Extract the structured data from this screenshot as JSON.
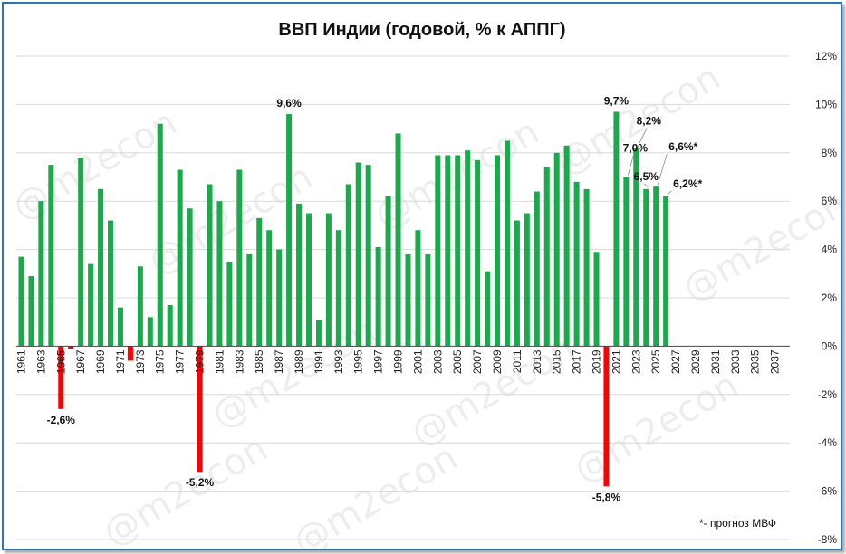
{
  "chart_data": {
    "type": "bar",
    "title": "ВВП Индии (годовой, % к АППГ)",
    "watermark": "@m2econ",
    "footnote": "*- прогноз МВФ",
    "ylim": [
      -8,
      12
    ],
    "yticks": [
      "12%",
      "10%",
      "8%",
      "6%",
      "4%",
      "2%",
      "0%",
      "-2%",
      "-4%",
      "-6%",
      "-8%"
    ],
    "x_start": 1961,
    "x_end": 2038,
    "x_tick_labels": [
      "1961",
      "1963",
      "1965",
      "1967",
      "1969",
      "1971",
      "1973",
      "1975",
      "1977",
      "1979",
      "1981",
      "1983",
      "1985",
      "1987",
      "1989",
      "1991",
      "1993",
      "1995",
      "1997",
      "1999",
      "2001",
      "2003",
      "2005",
      "2007",
      "2009",
      "2011",
      "2013",
      "2015",
      "2017",
      "2019",
      "2021",
      "2023",
      "2025",
      "2027",
      "2029",
      "2031",
      "2033",
      "2035",
      "2037"
    ],
    "colors": {
      "positive": "#1aaa4b",
      "negative": "#ff0000",
      "axis": "#444444",
      "grid": "#d9d9d9",
      "border": "#2e75b6"
    },
    "grid": true,
    "values": [
      {
        "year": 1961,
        "value": 3.7
      },
      {
        "year": 1962,
        "value": 2.9
      },
      {
        "year": 1963,
        "value": 6.0
      },
      {
        "year": 1964,
        "value": 7.5
      },
      {
        "year": 1965,
        "value": -2.6
      },
      {
        "year": 1966,
        "value": -0.1
      },
      {
        "year": 1967,
        "value": 7.8
      },
      {
        "year": 1968,
        "value": 3.4
      },
      {
        "year": 1969,
        "value": 6.5
      },
      {
        "year": 1970,
        "value": 5.2
      },
      {
        "year": 1971,
        "value": 1.6
      },
      {
        "year": 1972,
        "value": -0.6
      },
      {
        "year": 1973,
        "value": 3.3
      },
      {
        "year": 1974,
        "value": 1.2
      },
      {
        "year": 1975,
        "value": 9.2
      },
      {
        "year": 1976,
        "value": 1.7
      },
      {
        "year": 1977,
        "value": 7.3
      },
      {
        "year": 1978,
        "value": 5.7
      },
      {
        "year": 1979,
        "value": -5.2
      },
      {
        "year": 1980,
        "value": 6.7
      },
      {
        "year": 1981,
        "value": 6.0
      },
      {
        "year": 1982,
        "value": 3.5
      },
      {
        "year": 1983,
        "value": 7.3
      },
      {
        "year": 1984,
        "value": 3.8
      },
      {
        "year": 1985,
        "value": 5.3
      },
      {
        "year": 1986,
        "value": 4.8
      },
      {
        "year": 1987,
        "value": 4.0
      },
      {
        "year": 1988,
        "value": 9.6
      },
      {
        "year": 1989,
        "value": 5.9
      },
      {
        "year": 1990,
        "value": 5.5
      },
      {
        "year": 1991,
        "value": 1.1
      },
      {
        "year": 1992,
        "value": 5.5
      },
      {
        "year": 1993,
        "value": 4.8
      },
      {
        "year": 1994,
        "value": 6.7
      },
      {
        "year": 1995,
        "value": 7.6
      },
      {
        "year": 1996,
        "value": 7.5
      },
      {
        "year": 1997,
        "value": 4.1
      },
      {
        "year": 1998,
        "value": 6.2
      },
      {
        "year": 1999,
        "value": 8.8
      },
      {
        "year": 2000,
        "value": 3.8
      },
      {
        "year": 2001,
        "value": 4.8
      },
      {
        "year": 2002,
        "value": 3.8
      },
      {
        "year": 2003,
        "value": 7.9
      },
      {
        "year": 2004,
        "value": 7.9
      },
      {
        "year": 2005,
        "value": 7.9
      },
      {
        "year": 2006,
        "value": 8.1
      },
      {
        "year": 2007,
        "value": 7.7
      },
      {
        "year": 2008,
        "value": 3.1
      },
      {
        "year": 2009,
        "value": 7.9
      },
      {
        "year": 2010,
        "value": 8.5
      },
      {
        "year": 2011,
        "value": 5.2
      },
      {
        "year": 2012,
        "value": 5.5
      },
      {
        "year": 2013,
        "value": 6.4
      },
      {
        "year": 2014,
        "value": 7.4
      },
      {
        "year": 2015,
        "value": 8.0
      },
      {
        "year": 2016,
        "value": 8.3
      },
      {
        "year": 2017,
        "value": 6.8
      },
      {
        "year": 2018,
        "value": 6.5
      },
      {
        "year": 2019,
        "value": 3.9
      },
      {
        "year": 2020,
        "value": -5.8
      },
      {
        "year": 2021,
        "value": 9.7
      },
      {
        "year": 2022,
        "value": 7.0
      },
      {
        "year": 2023,
        "value": 8.2
      },
      {
        "year": 2024,
        "value": 6.5
      },
      {
        "year": 2025,
        "value": 6.6
      },
      {
        "year": 2026,
        "value": 6.2
      }
    ],
    "labels": [
      {
        "year": 1965,
        "value": -2.6,
        "text": "-2,6%"
      },
      {
        "year": 1979,
        "value": -5.2,
        "text": "-5,2%"
      },
      {
        "year": 1988,
        "value": 9.6,
        "text": "9,6%"
      },
      {
        "year": 2020,
        "value": -5.8,
        "text": "-5,8%"
      },
      {
        "year": 2021,
        "value": 9.7,
        "text": "9,7%"
      },
      {
        "year": 2022,
        "value": 7.0,
        "text": "7,0%"
      },
      {
        "year": 2023,
        "value": 8.2,
        "text": "8,2%"
      },
      {
        "year": 2024,
        "value": 6.5,
        "text": "6,5%"
      },
      {
        "year": 2025,
        "value": 6.6,
        "text": "6,6%*"
      },
      {
        "year": 2026,
        "value": 6.2,
        "text": "6,2%*"
      }
    ]
  }
}
